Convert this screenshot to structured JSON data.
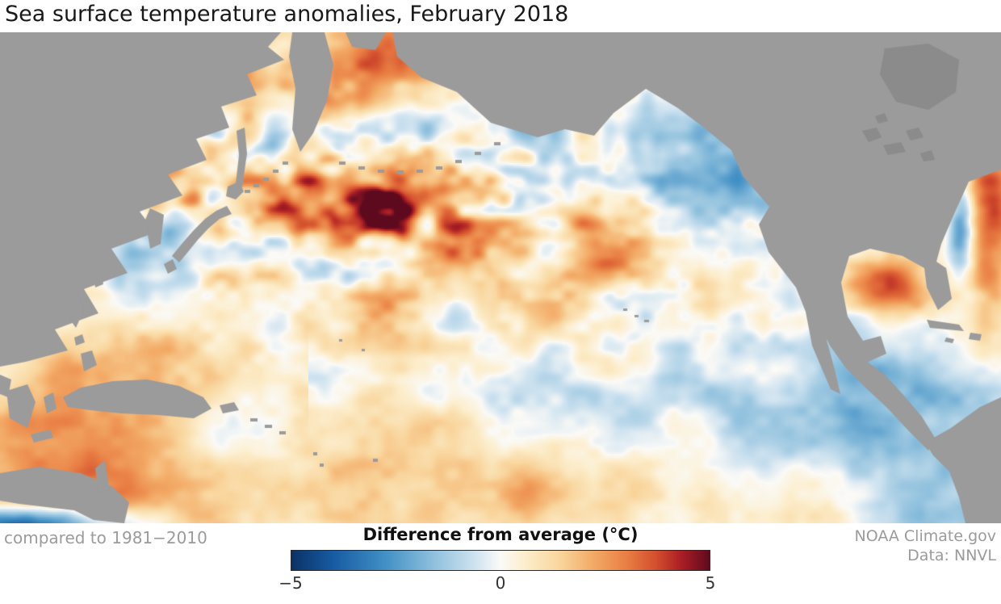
{
  "title": "Sea surface temperature anomalies, February 2018",
  "footer": {
    "baseline_note": "compared to 1981−2010",
    "attribution_line1": "NOAA Climate.gov",
    "attribution_line2": "Data: NNVL"
  },
  "legend": {
    "title": "Difference from average (°C)",
    "tick_min": "−5",
    "tick_mid": "0",
    "tick_max": "5",
    "min_value": -5,
    "mid_value": 0,
    "max_value": 5,
    "units": "°C"
  },
  "map": {
    "land_color": "#9b9b9b",
    "lake_color": "#8b8b8b",
    "background_color": "#ffffff",
    "colormap": [
      {
        "t": 0.0,
        "color": "#0b3166"
      },
      {
        "t": 0.1,
        "color": "#175ba2"
      },
      {
        "t": 0.22,
        "color": "#3f8ec4"
      },
      {
        "t": 0.34,
        "color": "#8fc0dd"
      },
      {
        "t": 0.44,
        "color": "#cfe3f0"
      },
      {
        "t": 0.5,
        "color": "#fbfaf7"
      },
      {
        "t": 0.56,
        "color": "#fcedcb"
      },
      {
        "t": 0.64,
        "color": "#f9d69e"
      },
      {
        "t": 0.72,
        "color": "#f3ab67"
      },
      {
        "t": 0.8,
        "color": "#e97f44"
      },
      {
        "t": 0.87,
        "color": "#d4502e"
      },
      {
        "t": 0.93,
        "color": "#ad1f25"
      },
      {
        "t": 1.0,
        "color": "#5e0a1e"
      }
    ]
  }
}
